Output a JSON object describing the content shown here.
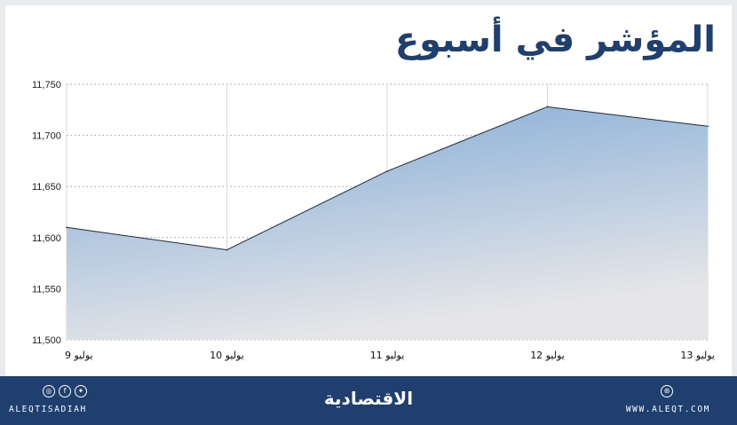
{
  "title": "المؤشر في أسبوع",
  "chart_data": {
    "type": "area",
    "title": "المؤشر في أسبوع",
    "categories": [
      "9 يوليو",
      "10 يوليو",
      "11 يوليو",
      "12 يوليو",
      "13 يوليو"
    ],
    "values": [
      11610,
      11588,
      11665,
      11728,
      11709
    ],
    "ylim": [
      11500,
      11750
    ],
    "yticks": [
      11500,
      11550,
      11600,
      11650,
      11700,
      11750
    ],
    "ytick_labels": [
      "11,500",
      "11,550",
      "11,600",
      "11,650",
      "11,700",
      "11,750"
    ],
    "grid": true,
    "colors": {
      "fill_top": "#7fa9d6",
      "fill_bottom": "#e6e6e8",
      "line": "#1a2a44",
      "grid": "#9a9a9a"
    }
  },
  "footer": {
    "handle": "ALEQTISADIAH",
    "website": "WWW.ALEQT.COM",
    "brand": "الاقتصادية",
    "icons_left": [
      "instagram-icon",
      "facebook-icon",
      "twitter-icon"
    ],
    "icons_right": [
      "web-icon"
    ],
    "background": "#1f3f6e"
  }
}
